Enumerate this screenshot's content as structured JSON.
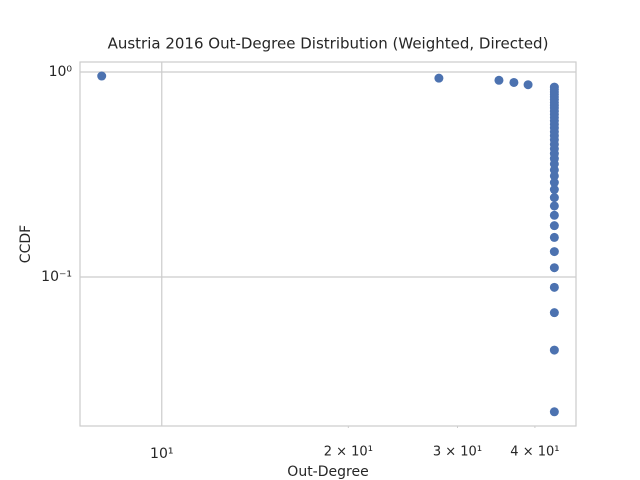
{
  "chart_data": {
    "type": "scatter",
    "title": "Austria 2016 Out-Degree Distribution (Weighted, Directed)",
    "xlabel": "Out-Degree",
    "ylabel": "CCDF",
    "xscale": "log",
    "yscale": "log",
    "grid": true,
    "color": "#4c72b0",
    "xlim": [
      7.38,
      46.6
    ],
    "ylim": [
      0.01875,
      1.119
    ],
    "xticks": [
      {
        "value": 10,
        "label": "10¹"
      }
    ],
    "xminor_ticks": [
      {
        "value": 20,
        "label": "2 × 10¹"
      },
      {
        "value": 30,
        "label": "3 × 10¹"
      },
      {
        "value": 40,
        "label": "4 × 10¹"
      }
    ],
    "yticks": [
      {
        "value": 1,
        "label": "10⁰"
      },
      {
        "value": 0.1,
        "label": "10⁻¹"
      }
    ],
    "x": [
      8,
      28,
      35,
      37,
      39,
      43,
      43,
      43,
      43,
      43,
      43,
      43,
      43,
      43,
      43,
      43,
      43,
      43,
      43,
      43,
      43,
      43,
      43,
      43,
      43,
      43,
      43,
      43,
      43,
      43,
      43,
      43,
      43,
      43,
      43,
      43,
      43,
      43,
      43,
      43,
      43,
      43,
      43
    ],
    "values": [
      0.956,
      0.933,
      0.911,
      0.889,
      0.867,
      0.844,
      0.822,
      0.8,
      0.778,
      0.756,
      0.733,
      0.711,
      0.689,
      0.667,
      0.644,
      0.622,
      0.6,
      0.578,
      0.556,
      0.533,
      0.511,
      0.489,
      0.467,
      0.444,
      0.422,
      0.4,
      0.378,
      0.356,
      0.333,
      0.311,
      0.289,
      0.267,
      0.244,
      0.222,
      0.2,
      0.178,
      0.156,
      0.133,
      0.111,
      0.089,
      0.067,
      0.044,
      0.022
    ]
  }
}
